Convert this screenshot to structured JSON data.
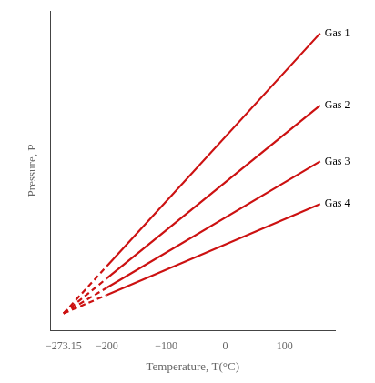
{
  "chart_data": {
    "type": "line",
    "xlabel": "Temperature, T(°C)",
    "ylabel": "Pressure, P",
    "x": [
      -273.15,
      -200,
      160
    ],
    "series": [
      {
        "color": "#cc1111",
        "line_style": "dashed",
        "values": [
          0.0,
          76.8075,
          null
        ]
      },
      {
        "name": "Gas 1",
        "color": "#cc1111",
        "line_style": "solid",
        "values": [
          null,
          76.8075,
          454.8075
        ]
      },
      {
        "color": "#cc1111",
        "line_style": "dashed",
        "values": [
          0.0,
          57.057,
          null
        ]
      },
      {
        "name": "Gas 2",
        "color": "#cc1111",
        "line_style": "solid",
        "values": [
          null,
          57.057,
          337.857
        ]
      },
      {
        "color": "#cc1111",
        "line_style": "dashed",
        "values": [
          0.0,
          41.6955,
          null
        ]
      },
      {
        "name": "Gas 3",
        "color": "#cc1111",
        "line_style": "solid",
        "values": [
          null,
          41.6955,
          246.8955
        ]
      },
      {
        "color": "#cc1111",
        "line_style": "dashed",
        "values": [
          0.0,
          29.9915,
          null
        ]
      },
      {
        "name": "Gas 4",
        "color": "#cc1111",
        "line_style": "solid",
        "values": [
          null,
          29.9915,
          177.5915
        ]
      }
    ],
    "xlim": [
      -295,
      185
    ],
    "xticks": [
      {
        "value": -273.15,
        "label": "−273.15"
      },
      {
        "value": -200,
        "label": "−200"
      },
      {
        "value": -100,
        "label": "−100"
      },
      0,
      100
    ],
    "ylim": [
      -27.28845,
      491.1921
    ],
    "grid": false,
    "tick_labels": "x"
  }
}
